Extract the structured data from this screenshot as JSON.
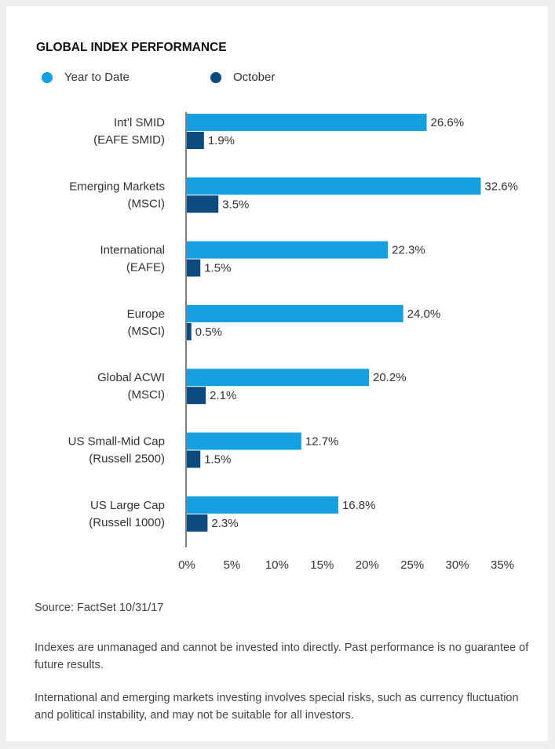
{
  "chart_data": {
    "type": "bar",
    "orientation": "horizontal",
    "title": "GLOBAL INDEX PERFORMANCE",
    "categories": [
      [
        "Int’l SMID",
        "(EAFE SMID)"
      ],
      [
        "Emerging Markets",
        "(MSCI)"
      ],
      [
        "International",
        "(EAFE)"
      ],
      [
        "Europe",
        "(MSCI)"
      ],
      [
        "Global ACWI",
        "(MSCI)"
      ],
      [
        "US Small-Mid Cap",
        "(Russell 2500)"
      ],
      [
        "US Large Cap",
        "(Russell 1000)"
      ]
    ],
    "series": [
      {
        "name": "Year to Date",
        "color": "#139fe0",
        "values": [
          26.6,
          32.6,
          22.3,
          24.0,
          20.2,
          12.7,
          16.8
        ],
        "value_labels": [
          "26.6%",
          "32.6%",
          "22.3%",
          "24.0%",
          "20.2%",
          "12.7%",
          "16.8%"
        ]
      },
      {
        "name": "October",
        "color": "#0d4a80",
        "values": [
          1.9,
          3.5,
          1.5,
          0.5,
          2.1,
          1.5,
          2.3
        ],
        "value_labels": [
          "1.9%",
          "3.5%",
          "1.5%",
          "0.5%",
          "2.1%",
          "1.5%",
          "2.3%"
        ]
      }
    ],
    "xlim": [
      0,
      35
    ],
    "xticks": [
      {
        "value": 0,
        "label": "0%"
      },
      {
        "value": 5,
        "label": "5%"
      },
      {
        "value": 10,
        "label": "10%"
      },
      {
        "value": 15,
        "label": "15%"
      },
      {
        "value": 20,
        "label": "20%"
      },
      {
        "value": 25,
        "label": "25%"
      },
      {
        "value": 30,
        "label": "30%"
      },
      {
        "value": 35,
        "label": "35%"
      }
    ],
    "legend": "top-left",
    "source": "Source: FactSet   10/31/17",
    "notes": [
      "Indexes are unmanaged and cannot be invested into directly. Past performance is no guarantee of future results.",
      "International and emerging markets investing involves special risks, such as currency fluctuation and political instability, and may not be suitable for all investors."
    ]
  }
}
